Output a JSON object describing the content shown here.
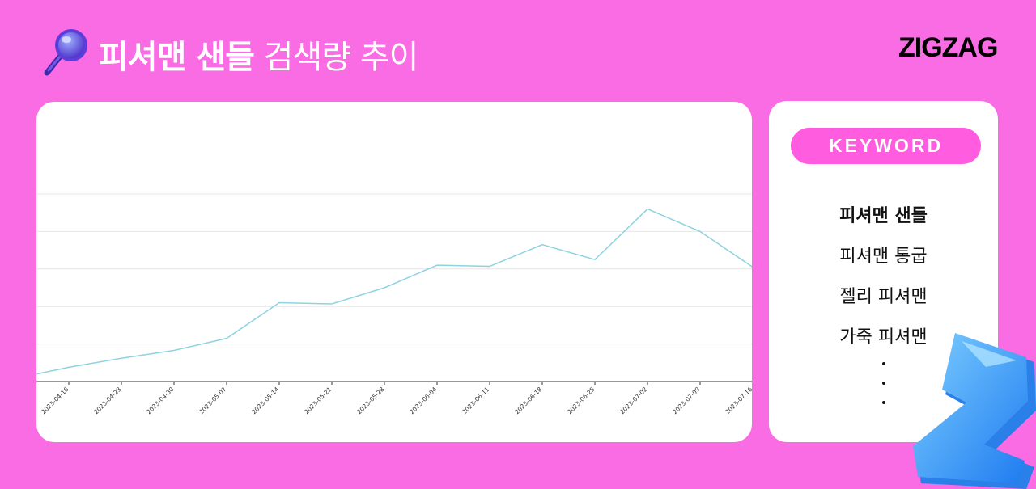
{
  "theme": {
    "background": "#F96CE3",
    "accent": "#FF5CE0",
    "line_color": "#8FD3E0",
    "grid_color": "#E6E6E6"
  },
  "header": {
    "title_bold": "피셔맨 샌들",
    "title_light": " 검색량 추이",
    "icon": "magnifier-icon",
    "logo": "ZIGZAG"
  },
  "keyword_panel": {
    "header": "KEYWORD",
    "items": [
      "피셔맨 샌들",
      "피셔맨 통굽",
      "젤리 피셔맨",
      "가죽 피셔맨"
    ],
    "active_index": 0
  },
  "chart_data": {
    "type": "line",
    "title": "",
    "xlabel": "",
    "ylabel": "",
    "x": [
      "2023-04-16",
      "2023-04-23",
      "2023-04-30",
      "2023-05-07",
      "2023-05-14",
      "2023-05-21",
      "2023-05-28",
      "2023-06-04",
      "2023-06-11",
      "2023-06-18",
      "2023-06-25",
      "2023-07-02",
      "2023-07-09",
      "2023-07-16"
    ],
    "series": [
      {
        "values": [
          3.8,
          6.2,
          8.3,
          11.5,
          21,
          20.7,
          25,
          31,
          30.7,
          36.5,
          32.5,
          46,
          40,
          30.5
        ]
      }
    ],
    "leading_value": 2,
    "trailing_value": 30.5,
    "ylim": [
      0,
      50
    ],
    "grid": true,
    "y_ticks_visible": false
  }
}
